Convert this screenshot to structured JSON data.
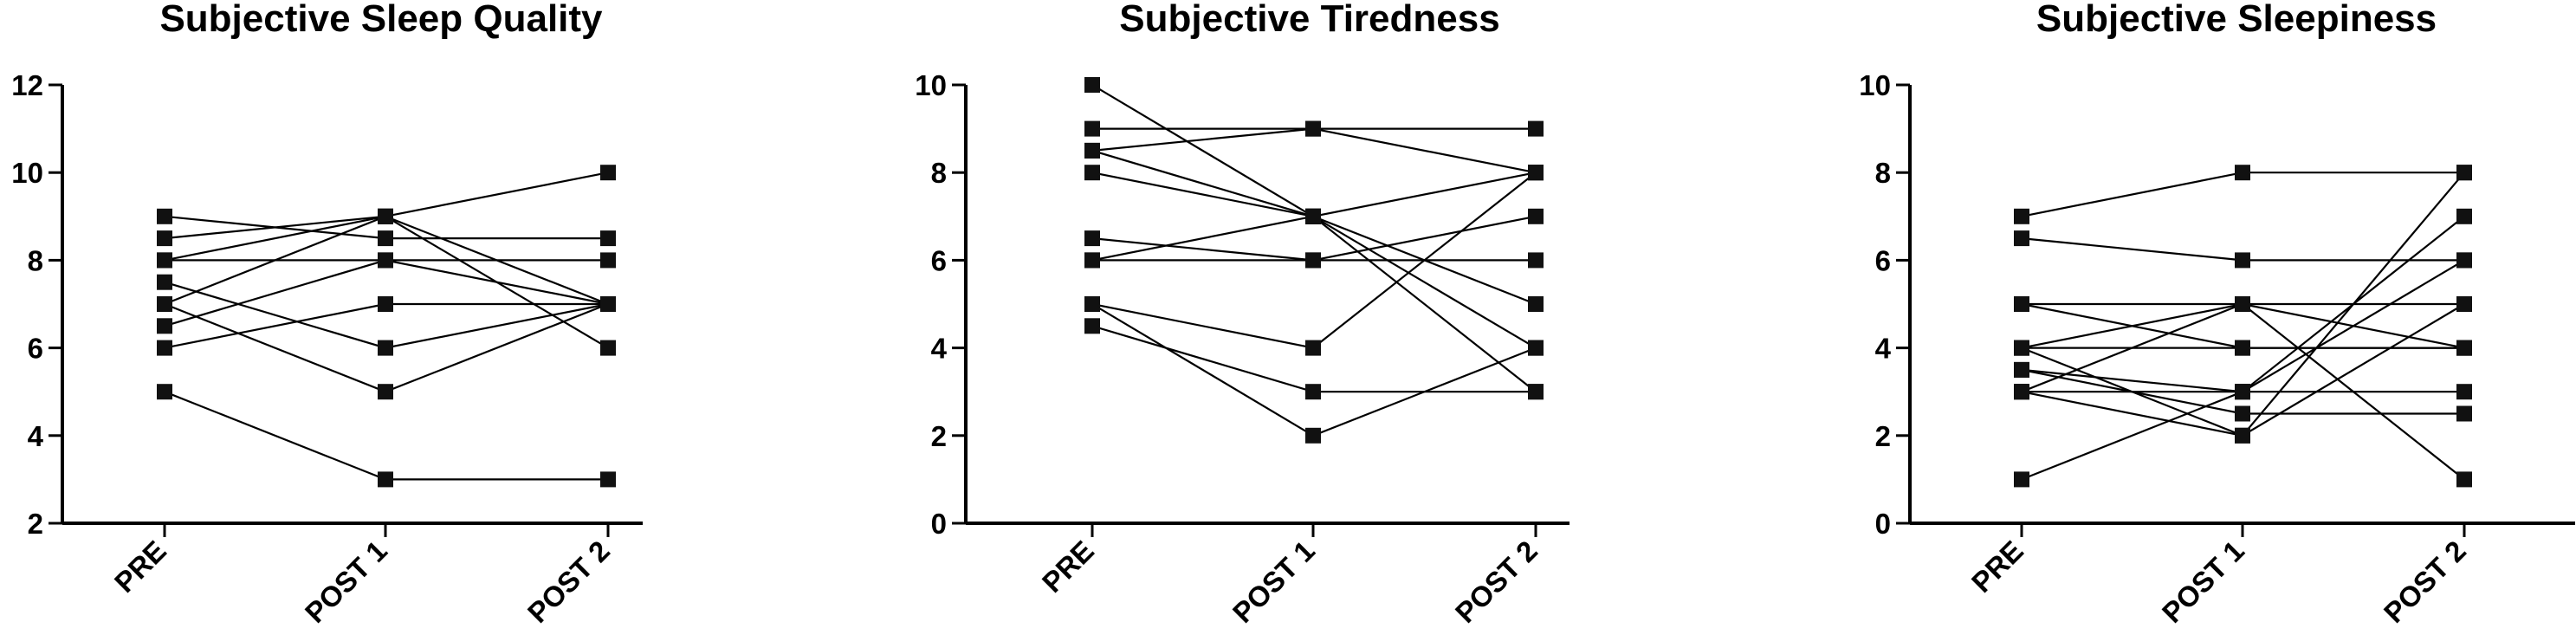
{
  "chart_data": [
    {
      "type": "line",
      "title": "Subjective Sleep Quality",
      "categories": [
        "PRE",
        "POST 1",
        "POST 2"
      ],
      "ylim": [
        2,
        12
      ],
      "yticks": [
        2,
        4,
        6,
        8,
        10,
        12
      ],
      "series": [
        {
          "values": [
            9,
            8.5,
            8.5
          ]
        },
        {
          "values": [
            8.5,
            9,
            10
          ]
        },
        {
          "values": [
            8,
            8,
            8
          ]
        },
        {
          "values": [
            8,
            9,
            7
          ]
        },
        {
          "values": [
            7.5,
            6,
            7
          ]
        },
        {
          "values": [
            7,
            9,
            6
          ]
        },
        {
          "values": [
            7,
            5,
            7
          ]
        },
        {
          "values": [
            6.5,
            8,
            7
          ]
        },
        {
          "values": [
            6,
            7,
            7
          ]
        },
        {
          "values": [
            5,
            3,
            3
          ]
        }
      ]
    },
    {
      "type": "line",
      "title": "Subjective Tiredness",
      "categories": [
        "PRE",
        "POST 1",
        "POST 2"
      ],
      "ylim": [
        0,
        10
      ],
      "yticks": [
        0,
        2,
        4,
        6,
        8,
        10
      ],
      "series": [
        {
          "values": [
            10,
            7,
            3
          ]
        },
        {
          "values": [
            9,
            9,
            9
          ]
        },
        {
          "values": [
            8.5,
            9,
            8
          ]
        },
        {
          "values": [
            8.5,
            7,
            5
          ]
        },
        {
          "values": [
            8,
            7,
            4
          ]
        },
        {
          "values": [
            6.5,
            6,
            6
          ]
        },
        {
          "values": [
            6,
            7,
            8
          ]
        },
        {
          "values": [
            6,
            6,
            7
          ]
        },
        {
          "values": [
            5,
            4,
            8
          ]
        },
        {
          "values": [
            5,
            2,
            4
          ]
        },
        {
          "values": [
            4.5,
            3,
            3
          ]
        }
      ]
    },
    {
      "type": "line",
      "title": "Subjective Sleepiness",
      "categories": [
        "PRE",
        "POST 1",
        "POST 2"
      ],
      "ylim": [
        0,
        10
      ],
      "yticks": [
        0,
        2,
        4,
        6,
        8,
        10
      ],
      "series": [
        {
          "values": [
            7,
            8,
            8
          ]
        },
        {
          "values": [
            6.5,
            6,
            6
          ]
        },
        {
          "values": [
            5,
            5,
            5
          ]
        },
        {
          "values": [
            5,
            4,
            4
          ]
        },
        {
          "values": [
            4,
            5,
            4
          ]
        },
        {
          "values": [
            4,
            4,
            4
          ]
        },
        {
          "values": [
            3.5,
            3,
            3
          ]
        },
        {
          "values": [
            3.5,
            2.5,
            2.5
          ]
        },
        {
          "values": [
            3,
            5,
            1
          ]
        },
        {
          "values": [
            3,
            2,
            5
          ]
        },
        {
          "values": [
            3,
            3,
            7
          ]
        },
        {
          "values": [
            4,
            2,
            8
          ]
        },
        {
          "values": [
            1,
            3,
            6
          ]
        }
      ]
    }
  ]
}
